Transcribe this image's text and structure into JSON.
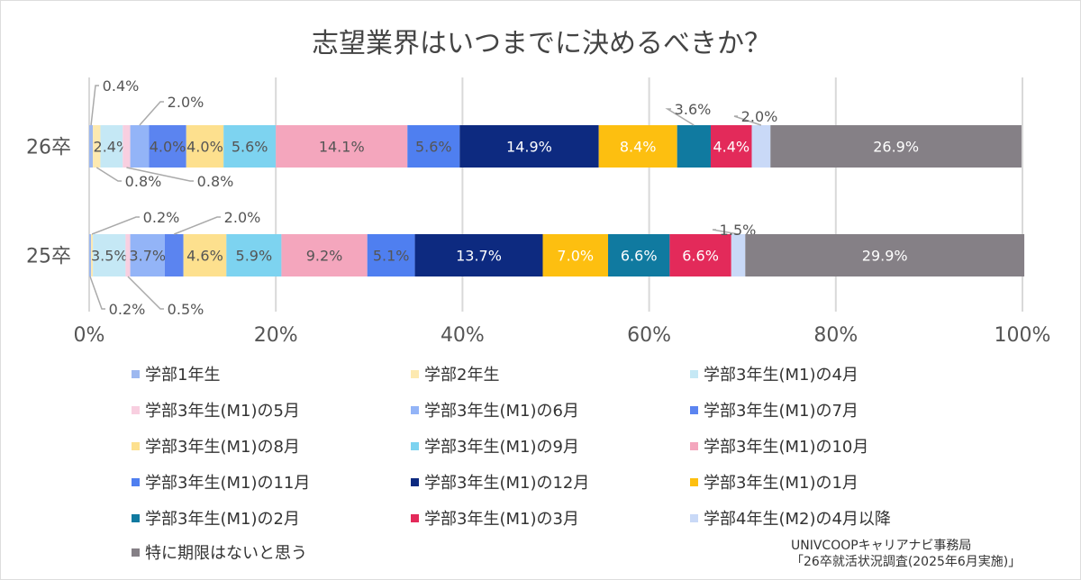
{
  "chart_data": {
    "type": "bar",
    "orientation": "horizontal",
    "stacked": true,
    "title": "志望業界はいつまでに決めるべきか？",
    "categories": [
      "26卒",
      "25卒"
    ],
    "xlim": [
      0,
      100
    ],
    "xticks": [
      "0%",
      "20%",
      "40%",
      "60%",
      "80%",
      "100%"
    ],
    "grid": true,
    "legend_position": "bottom",
    "series": [
      {
        "name": "学部1年生",
        "color": "#9db8f0",
        "values": [
          0.4,
          0.2
        ]
      },
      {
        "name": "学部2年生",
        "color": "#fde9b0",
        "values": [
          0.8,
          0.2
        ]
      },
      {
        "name": "学部3年生(M1)の4月",
        "color": "#c5e8f5",
        "values": [
          2.4,
          3.5
        ]
      },
      {
        "name": "学部3年生(M1)の5月",
        "color": "#f8cfe0",
        "values": [
          0.8,
          0.5
        ]
      },
      {
        "name": "学部3年生(M1)の6月",
        "color": "#93b4f7",
        "values": [
          2.0,
          3.7
        ]
      },
      {
        "name": "学部3年生(M1)の7月",
        "color": "#5b84f0",
        "values": [
          4.0,
          2.0
        ]
      },
      {
        "name": "学部3年生(M1)の8月",
        "color": "#fde08e",
        "values": [
          4.0,
          4.6
        ]
      },
      {
        "name": "学部3年生(M1)の9月",
        "color": "#7dd3f0",
        "values": [
          5.6,
          5.9
        ]
      },
      {
        "name": "学部3年生(M1)の10月",
        "color": "#f4a6bd",
        "values": [
          14.1,
          9.2
        ]
      },
      {
        "name": "学部3年生(M1)の11月",
        "color": "#4f7ff0",
        "values": [
          5.6,
          5.1
        ]
      },
      {
        "name": "学部3年生(M1)の12月",
        "color": "#0d2a80",
        "values": [
          14.9,
          13.7
        ]
      },
      {
        "name": "学部3年生(M1)の1月",
        "color": "#fdbf10",
        "values": [
          8.4,
          7.0
        ]
      },
      {
        "name": "学部3年生(M1)の2月",
        "color": "#107aa0",
        "values": [
          3.6,
          6.6
        ]
      },
      {
        "name": "学部3年生(M1)の3月",
        "color": "#e32a5a",
        "values": [
          4.4,
          6.6
        ]
      },
      {
        "name": "学部4年生(M2)の4月以降",
        "color": "#c9d9f7",
        "values": [
          2.0,
          1.5
        ]
      },
      {
        "name": "特に期限はないと思う",
        "color": "#858086",
        "values": [
          26.9,
          29.9
        ]
      }
    ]
  },
  "source": {
    "line1": "UNIVCOOPキャリアナビ事務局",
    "line2": "「26卒就活状況調査(2025年6月実施)」"
  }
}
